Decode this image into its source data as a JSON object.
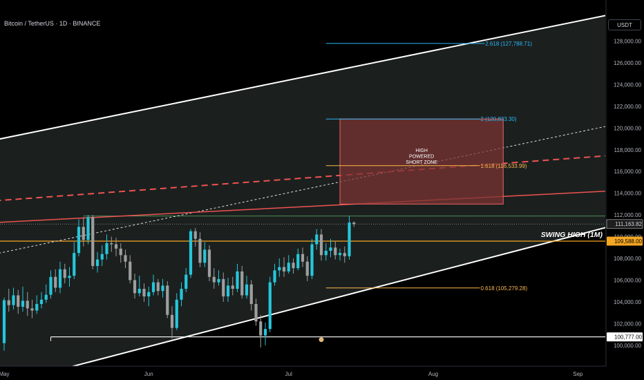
{
  "header": {
    "title": "Bitcoin / TetherUS · 1D · BINANCE",
    "currency": "USDT"
  },
  "chart_data": {
    "type": "candlestick",
    "y_ticks": [
      100000,
      102000,
      104000,
      106000,
      108000,
      110000,
      112000,
      114000,
      116000,
      118000,
      120000,
      122000,
      124000,
      126000,
      128000
    ],
    "y_tick_labels": [
      "100,000.00",
      "102,000.00",
      "104,000.00",
      "106,000.00",
      "108,000.00",
      "110,000.00",
      "112,000.00",
      "114,000.00",
      "116,000.00",
      "118,000.00",
      "120,000.00",
      "122,000.00",
      "124,000.00",
      "126,000.00",
      "128,000.00"
    ],
    "x_ticks": [
      {
        "label": "May",
        "day": 0
      },
      {
        "label": "Jun",
        "day": 31
      },
      {
        "label": "Jul",
        "day": 61
      },
      {
        "label": "Aug",
        "day": 92
      },
      {
        "label": "Sep",
        "day": 123
      }
    ],
    "candles": [
      [
        100200,
        104150,
        99500,
        104400
      ],
      [
        104150,
        103700,
        103100,
        105200
      ],
      [
        103700,
        104600,
        103300,
        105300
      ],
      [
        104600,
        103550,
        102900,
        105100
      ],
      [
        103550,
        104100,
        103100,
        105400
      ],
      [
        104100,
        103400,
        102700,
        104900
      ],
      [
        103400,
        103200,
        102500,
        104200
      ],
      [
        103200,
        103800,
        102900,
        104600
      ],
      [
        103800,
        104200,
        103400,
        104900
      ],
      [
        104200,
        104650,
        103900,
        105600
      ],
      [
        104650,
        106300,
        104300,
        106900
      ],
      [
        106300,
        105300,
        104900,
        107000
      ],
      [
        105300,
        107000,
        104800,
        107700
      ],
      [
        107000,
        106200,
        105700,
        107500
      ],
      [
        106200,
        106400,
        105400,
        107200
      ],
      [
        106400,
        108500,
        106100,
        109500
      ],
      [
        108500,
        110900,
        108200,
        111600
      ],
      [
        110900,
        109700,
        109100,
        111800
      ],
      [
        109700,
        111800,
        109300,
        112000
      ],
      [
        111800,
        107300,
        107000,
        112000
      ],
      [
        107300,
        107900,
        106700,
        108600
      ],
      [
        107900,
        108400,
        107300,
        109200
      ],
      [
        108400,
        109400,
        107900,
        110200
      ],
      [
        109400,
        109300,
        108600,
        110000
      ],
      [
        109300,
        108900,
        108200,
        109900
      ],
      [
        108900,
        108300,
        107600,
        109400
      ],
      [
        108300,
        107700,
        107100,
        108800
      ],
      [
        107700,
        106000,
        105700,
        108300
      ],
      [
        106000,
        104800,
        104300,
        106600
      ],
      [
        104800,
        105200,
        104500,
        106400
      ],
      [
        105200,
        104500,
        104000,
        105700
      ],
      [
        104500,
        104900,
        103600,
        105400
      ],
      [
        104900,
        105800,
        104600,
        106500
      ],
      [
        105800,
        105000,
        104600,
        106100
      ],
      [
        105000,
        105500,
        104400,
        106100
      ],
      [
        105500,
        102800,
        102500,
        105900
      ],
      [
        102800,
        101600,
        100600,
        103600
      ],
      [
        101600,
        104200,
        101400,
        104800
      ],
      [
        104200,
        105200,
        103600,
        105800
      ],
      [
        105200,
        106500,
        104900,
        107100
      ],
      [
        106500,
        110500,
        106200,
        110700
      ],
      [
        110500,
        109800,
        109100,
        110800
      ],
      [
        109800,
        107600,
        107200,
        110400
      ],
      [
        107600,
        108800,
        107200,
        109500
      ],
      [
        108800,
        106300,
        105900,
        109200
      ],
      [
        106300,
        105800,
        105200,
        107100
      ],
      [
        105800,
        106100,
        105500,
        106900
      ],
      [
        106100,
        104500,
        104000,
        106700
      ],
      [
        104500,
        105500,
        104000,
        106200
      ],
      [
        105500,
        105200,
        104600,
        106300
      ],
      [
        105200,
        106800,
        104900,
        107500
      ],
      [
        106800,
        104600,
        104300,
        107300
      ],
      [
        104600,
        105600,
        104300,
        106400
      ],
      [
        105600,
        103800,
        103200,
        106000
      ],
      [
        103800,
        102200,
        101800,
        104300
      ],
      [
        102200,
        100900,
        99800,
        102800
      ],
      [
        100900,
        101500,
        100000,
        102100
      ],
      [
        101500,
        105800,
        101200,
        106300
      ],
      [
        105800,
        106900,
        105500,
        107500
      ],
      [
        106900,
        107200,
        106300,
        108000
      ],
      [
        107200,
        106800,
        106300,
        108100
      ],
      [
        106800,
        107600,
        106600,
        108300
      ],
      [
        107600,
        107100,
        106600,
        108000
      ],
      [
        107100,
        108400,
        106900,
        108900
      ],
      [
        108400,
        107700,
        107200,
        109000
      ],
      [
        107700,
        106400,
        105900,
        108200
      ],
      [
        106400,
        109300,
        106100,
        109800
      ],
      [
        109300,
        110200,
        108800,
        110700
      ],
      [
        110200,
        108300,
        107800,
        110700
      ],
      [
        108300,
        108700,
        107800,
        109400
      ],
      [
        108700,
        109000,
        108100,
        109800
      ],
      [
        109000,
        108300,
        107900,
        109600
      ],
      [
        108300,
        108500,
        107800,
        108900
      ],
      [
        108500,
        108200,
        107600,
        109100
      ],
      [
        108200,
        111300,
        107900,
        111900
      ],
      [
        111300,
        111160,
        110900,
        111400
      ]
    ],
    "channel": {
      "upper": [
        [
          -2,
          118900
        ],
        [
          134,
          130800
        ]
      ],
      "lower": [
        [
          -2,
          96200
        ],
        [
          134,
          111400
        ]
      ]
    },
    "lines": {
      "red_solid": [
        [
          -2,
          111300
        ],
        [
          134,
          114300
        ]
      ],
      "red_dashed": [
        [
          -2,
          113300
        ],
        [
          134,
          117600
        ]
      ],
      "white_dotted": [
        [
          -2,
          108400
        ],
        [
          134,
          120600
        ]
      ],
      "support": 100777,
      "green_top": 111900,
      "gray_dotted": 111163.82
    },
    "box": {
      "label": "HIGH POWERED SHORT ZONE",
      "top": 120833.3,
      "bottom": 113000,
      "from_day": 72,
      "to_day": 107
    },
    "fib_levels": [
      {
        "value": 127788.71,
        "label": "2.618 (127,788.71)",
        "color": "#29b6f6",
        "from_day": 69,
        "to_day": 103
      },
      {
        "value": 120833.3,
        "label": "2 (120,833.30)",
        "color": "#29b6f6",
        "from_day": 69,
        "to_day": 102
      },
      {
        "value": 116533.99,
        "label": "1.618 (116,533.99)",
        "color": "#ffb74d",
        "from_day": 69,
        "to_day": 102
      },
      {
        "value": 105279.28,
        "label": "0.618 (105,279.28)",
        "color": "#ffb74d",
        "from_day": 69,
        "to_day": 102
      }
    ],
    "annotations": {
      "swing_high": {
        "text": "SWING HIGH (1M)",
        "value": 109588.0
      },
      "swing_line_from_day": -2
    },
    "price_tags": [
      {
        "value": 111163.82,
        "label": "111,163.82",
        "style": "gray"
      },
      {
        "value": 109588.0,
        "label": "109,588.00",
        "style": "orange"
      },
      {
        "value": 100777.0,
        "label": "100,777.00",
        "style": "white"
      }
    ],
    "colors": {
      "up": "#26c6da",
      "down": "#9e9e9e",
      "channel_fill": "#1e2422",
      "box_fill": "#7a3333",
      "box_stroke": "#f06262",
      "red": "#ef5350",
      "orange": "#f5a623",
      "background": "#000000"
    }
  }
}
